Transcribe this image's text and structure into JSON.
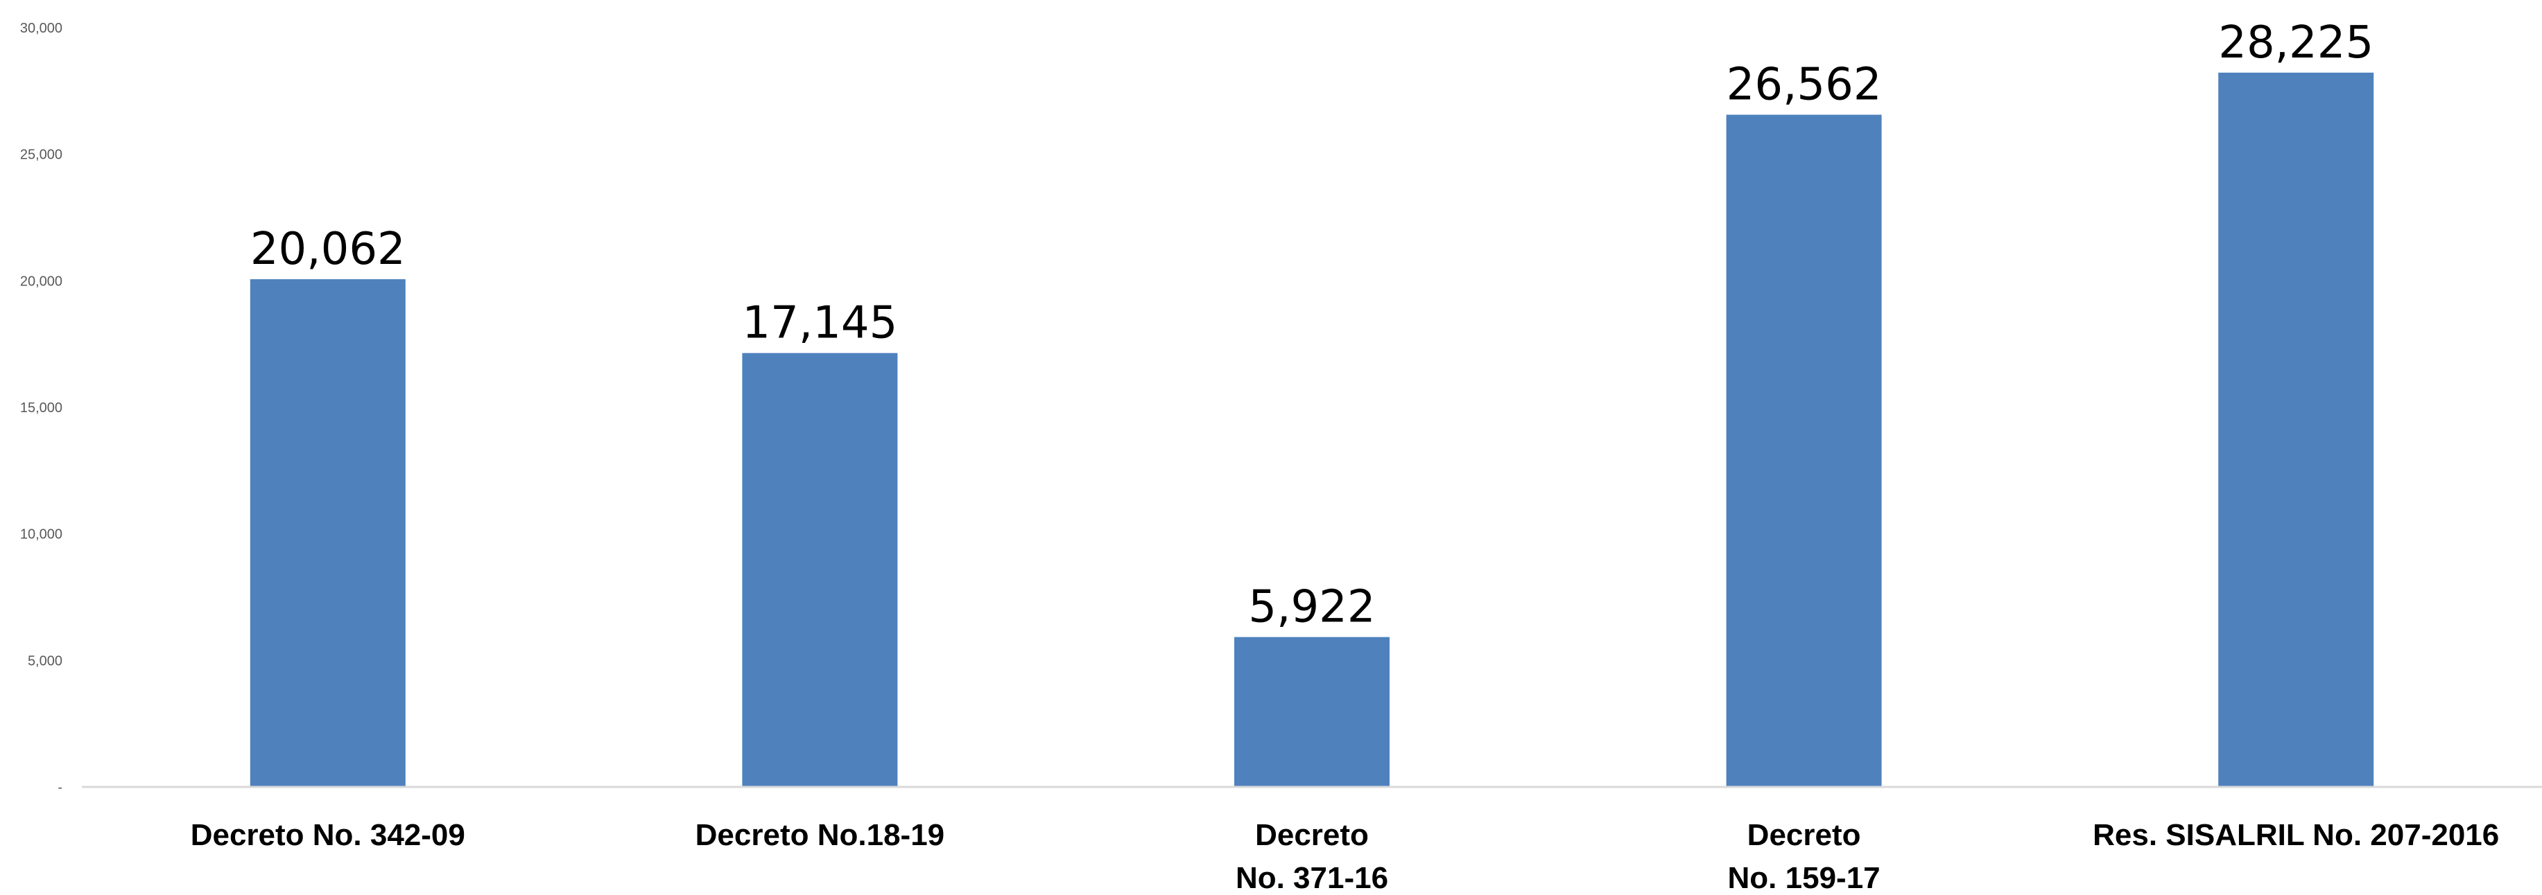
{
  "chart_data": {
    "type": "bar",
    "categories": [
      [
        "Decreto No. 342-09"
      ],
      [
        "Decreto No.18-19"
      ],
      [
        "Decreto",
        "No. 371-16"
      ],
      [
        "Decreto",
        "No. 159-17"
      ],
      [
        "Res. SISALRIL No. 207-2016"
      ]
    ],
    "values": [
      20062,
      17145,
      5922,
      26562,
      28225
    ],
    "data_labels": [
      "20,062",
      "17,145",
      "5,922",
      "26,562",
      "28,225"
    ],
    "yticks": [
      0,
      5000,
      10000,
      15000,
      20000,
      25000,
      30000
    ],
    "ytick_labels": [
      "-",
      "5,000",
      "10,000",
      "15,000",
      "20,000",
      "25,000",
      "30,000"
    ],
    "ylim": [
      0,
      30000
    ],
    "grid": false,
    "legend": "none",
    "colors": {
      "bar": "#4F81BD",
      "axis": "#D9D9D9"
    }
  }
}
